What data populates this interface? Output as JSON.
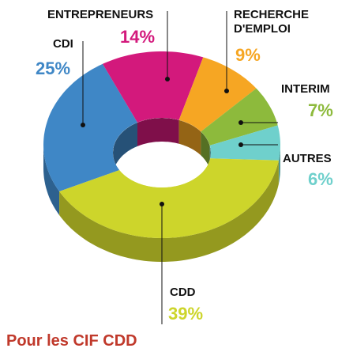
{
  "chart_data": {
    "type": "pie",
    "donut": true,
    "title": "Pour les CIF CDD",
    "categories": [
      "CDI",
      "ENTREPRENEURS",
      "RECHERCHE D'EMPLOI",
      "INTERIM",
      "AUTRES",
      "CDD"
    ],
    "values": [
      25,
      14,
      9,
      7,
      6,
      39
    ],
    "value_labels": [
      "25%",
      "14%",
      "9%",
      "7%",
      "6%",
      "39%"
    ],
    "colors": [
      "#3f87c6",
      "#d3197c",
      "#f6a623",
      "#8dba3c",
      "#6fd0cc",
      "#cdd52b"
    ]
  }
}
